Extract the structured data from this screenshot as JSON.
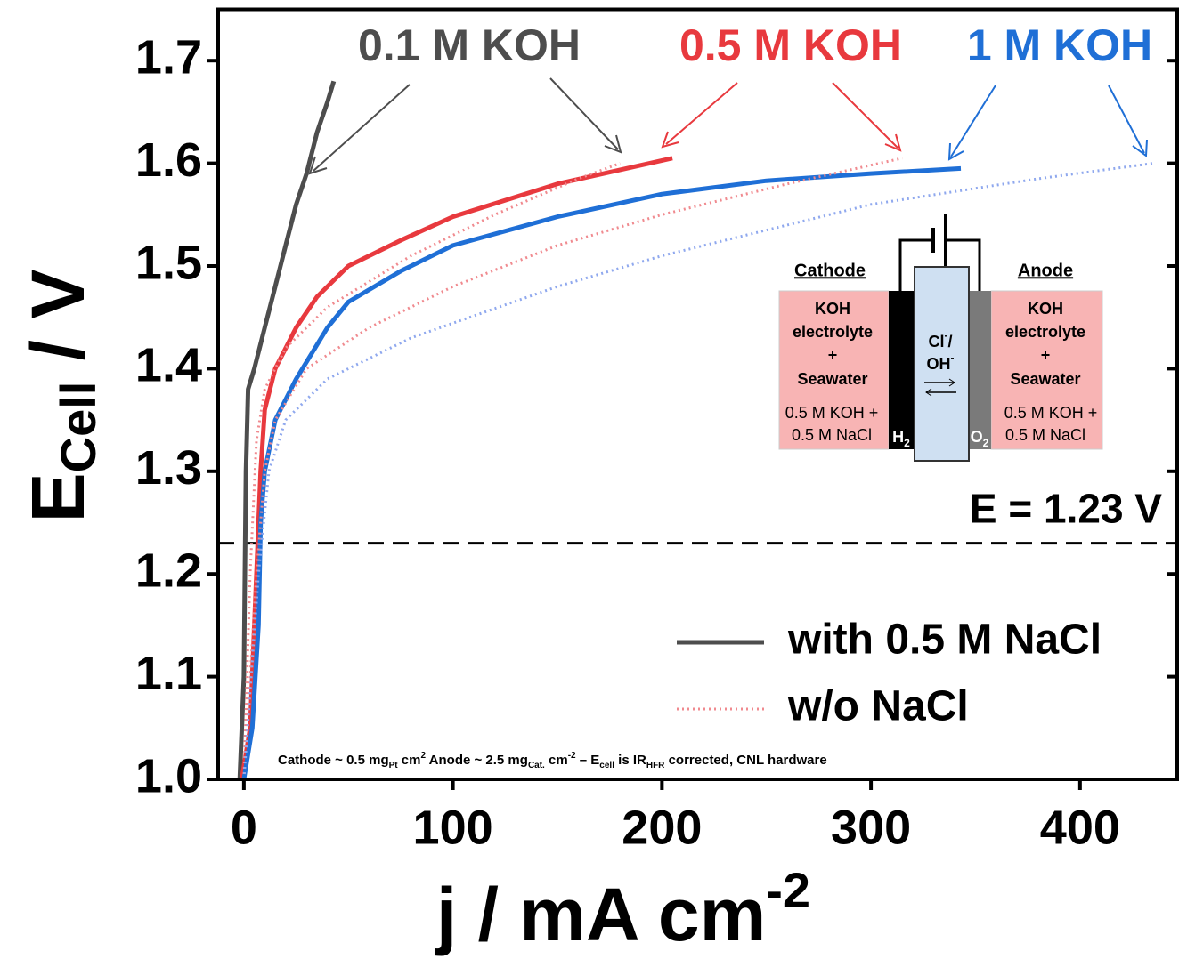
{
  "chart_data": {
    "type": "line",
    "xlabel": [
      "j / mA cm",
      "-2"
    ],
    "ylabel": [
      "E",
      "Cell",
      " / V"
    ],
    "xlim": [
      -12.3,
      446.5
    ],
    "ylim": [
      1.0,
      1.75
    ],
    "xticks": [
      0,
      100,
      200,
      300,
      400
    ],
    "yticks": [
      {
        "value": 1,
        "label": "1.0"
      },
      1.1,
      1.2,
      1.3,
      1.4,
      1.5,
      1.6,
      1.7
    ],
    "series": [
      {
        "color": "#4d4d4d",
        "dashed": false,
        "x": [
          -2,
          0,
          0.5,
          1,
          2,
          5,
          10,
          15,
          20,
          25,
          30,
          35,
          40,
          43
        ],
        "values": [
          1.0,
          1.1,
          1.2,
          1.3,
          1.38,
          1.4,
          1.44,
          1.48,
          1.52,
          1.56,
          1.59,
          1.63,
          1.66,
          1.68
        ]
      },
      {
        "color": "#e8393e",
        "dashed": false,
        "x": [
          -1,
          3,
          5,
          7,
          8,
          10,
          15,
          25,
          35,
          50,
          75,
          100,
          150,
          205
        ],
        "values": [
          1.0,
          1.05,
          1.15,
          1.25,
          1.3,
          1.36,
          1.4,
          1.44,
          1.47,
          1.5,
          1.525,
          1.548,
          1.58,
          1.605
        ]
      },
      {
        "color": "#1f6fd6",
        "dashed": false,
        "x": [
          0,
          4,
          7,
          8,
          10,
          15,
          25,
          40,
          50,
          75,
          100,
          150,
          200,
          250,
          300,
          343
        ],
        "values": [
          1.0,
          1.05,
          1.15,
          1.25,
          1.3,
          1.35,
          1.39,
          1.44,
          1.465,
          1.495,
          1.52,
          1.548,
          1.57,
          1.583,
          1.59,
          1.595
        ]
      },
      {
        "color": "#f08a8f",
        "dashed": true,
        "x": [
          0,
          3,
          6,
          10,
          20,
          40,
          80,
          120,
          160,
          180
        ],
        "values": [
          1.0,
          1.2,
          1.33,
          1.38,
          1.42,
          1.46,
          1.51,
          1.55,
          1.585,
          1.6
        ]
      },
      {
        "color": "#f08a8f",
        "dashed": true,
        "x": [
          0,
          6,
          10,
          15,
          30,
          60,
          100,
          150,
          200,
          260,
          315
        ],
        "values": [
          1.0,
          1.2,
          1.3,
          1.35,
          1.4,
          1.44,
          1.48,
          1.52,
          1.55,
          1.58,
          1.605
        ]
      },
      {
        "color": "#8fa8ee",
        "dashed": true,
        "x": [
          0,
          7,
          12,
          20,
          40,
          80,
          150,
          200,
          300,
          380,
          435
        ],
        "values": [
          1.0,
          1.2,
          1.3,
          1.35,
          1.39,
          1.43,
          1.48,
          1.51,
          1.56,
          1.585,
          1.6
        ]
      }
    ],
    "reference_line": {
      "value": 1.23,
      "label": "E = 1.23 V"
    },
    "annotations": [
      {
        "text": "0.1 M KOH",
        "color": "#4d4d4d"
      },
      {
        "text": "0.5 M KOH",
        "color": "#e8393e"
      },
      {
        "text": "1 M KOH",
        "color": "#1f6fd6"
      }
    ],
    "legend": [
      {
        "label": "with 0.5 M NaCl",
        "color": "#4d4d4d",
        "dashed": false
      },
      {
        "label": "w/o NaCl",
        "color": "#f08a8f",
        "dashed": true
      }
    ],
    "footnote": [
      "Cathode ~ 0.5 mg",
      "Pt",
      " cm",
      "2",
      " Anode  ~ 2.5 mg",
      "Cat.",
      " cm",
      "-2",
      " – E",
      "cell",
      " is IR",
      "HFR",
      " corrected, CNL hardware"
    ]
  },
  "inset": {
    "cathode": "Cathode",
    "anode": "Anode",
    "left_box": [
      "KOH",
      "electrolyte",
      "+",
      "Seawater",
      "0.5 M KOH +",
      "0.5 M NaCl"
    ],
    "right_box": [
      "KOH",
      "electrolyte",
      "+",
      "Seawater",
      "0.5 M KOH +",
      "0.5 M NaCl"
    ],
    "membrane": [
      "Cl",
      "-",
      "/",
      "OH",
      "-"
    ],
    "h2": [
      "H",
      "2"
    ],
    "o2": [
      "O",
      "2"
    ]
  }
}
